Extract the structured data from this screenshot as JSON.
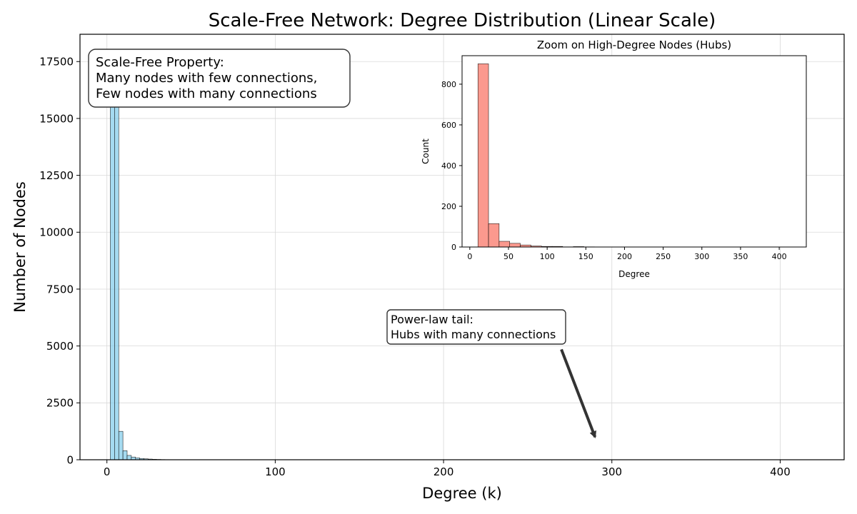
{
  "colors": {
    "main_bars": "#87ceeb",
    "inset_bars": "#fa8072",
    "bar_edge": "#000000",
    "grid": "#d9d9d9",
    "arrow": "#333333"
  },
  "chart_data": [
    {
      "type": "bar",
      "title": "Scale-Free Network: Degree Distribution (Linear Scale)",
      "xlabel": "Degree (k)",
      "ylabel": "Number of Nodes",
      "xlim": [
        -16,
        438
      ],
      "ylim": [
        0,
        18700
      ],
      "xticks": [
        0,
        100,
        200,
        300,
        400
      ],
      "yticks": [
        0,
        2500,
        5000,
        7500,
        10000,
        12500,
        15000,
        17500
      ],
      "grid": true,
      "bin_width": 2.5,
      "bins": [
        {
          "x0": 2.0,
          "count": 17800
        },
        {
          "x0": 4.5,
          "count": 17800
        },
        {
          "x0": 7.0,
          "count": 1250
        },
        {
          "x0": 9.5,
          "count": 400
        },
        {
          "x0": 12.0,
          "count": 190
        },
        {
          "x0": 14.5,
          "count": 120
        },
        {
          "x0": 17.0,
          "count": 80
        },
        {
          "x0": 19.5,
          "count": 55
        },
        {
          "x0": 22.0,
          "count": 40
        },
        {
          "x0": 24.5,
          "count": 30
        },
        {
          "x0": 27.0,
          "count": 20
        },
        {
          "x0": 29.5,
          "count": 15
        },
        {
          "x0": 32.0,
          "count": 10
        },
        {
          "x0": 34.5,
          "count": 8
        }
      ],
      "annotations": [
        {
          "lines": [
            "Scale-Free Property:",
            "Many nodes with few connections,",
            "Few nodes with many connections"
          ],
          "placement": "top-left"
        },
        {
          "lines": [
            "Power-law tail:",
            "Hubs with many connections"
          ],
          "arrow_from": [
            270,
            4850
          ],
          "arrow_to": [
            290,
            1000
          ]
        }
      ]
    },
    {
      "type": "bar",
      "title": "Zoom on High-Degree Nodes (Hubs)",
      "xlabel": "Degree",
      "ylabel": "Count",
      "xlim": [
        -10,
        435
      ],
      "ylim": [
        0,
        940
      ],
      "xticks": [
        0,
        50,
        100,
        150,
        200,
        250,
        300,
        350,
        400
      ],
      "yticks": [
        0,
        200,
        400,
        600,
        800
      ],
      "grid": false,
      "bin_width": 13.7,
      "bins": [
        {
          "x0": 10.5,
          "count": 900
        },
        {
          "x0": 24.2,
          "count": 115
        },
        {
          "x0": 37.9,
          "count": 28
        },
        {
          "x0": 51.6,
          "count": 18
        },
        {
          "x0": 65.3,
          "count": 10
        },
        {
          "x0": 79.0,
          "count": 5
        },
        {
          "x0": 92.7,
          "count": 3
        },
        {
          "x0": 106.4,
          "count": 3
        },
        {
          "x0": 120.1,
          "count": 1
        },
        {
          "x0": 133.8,
          "count": 2
        },
        {
          "x0": 147.5,
          "count": 1
        }
      ]
    }
  ]
}
